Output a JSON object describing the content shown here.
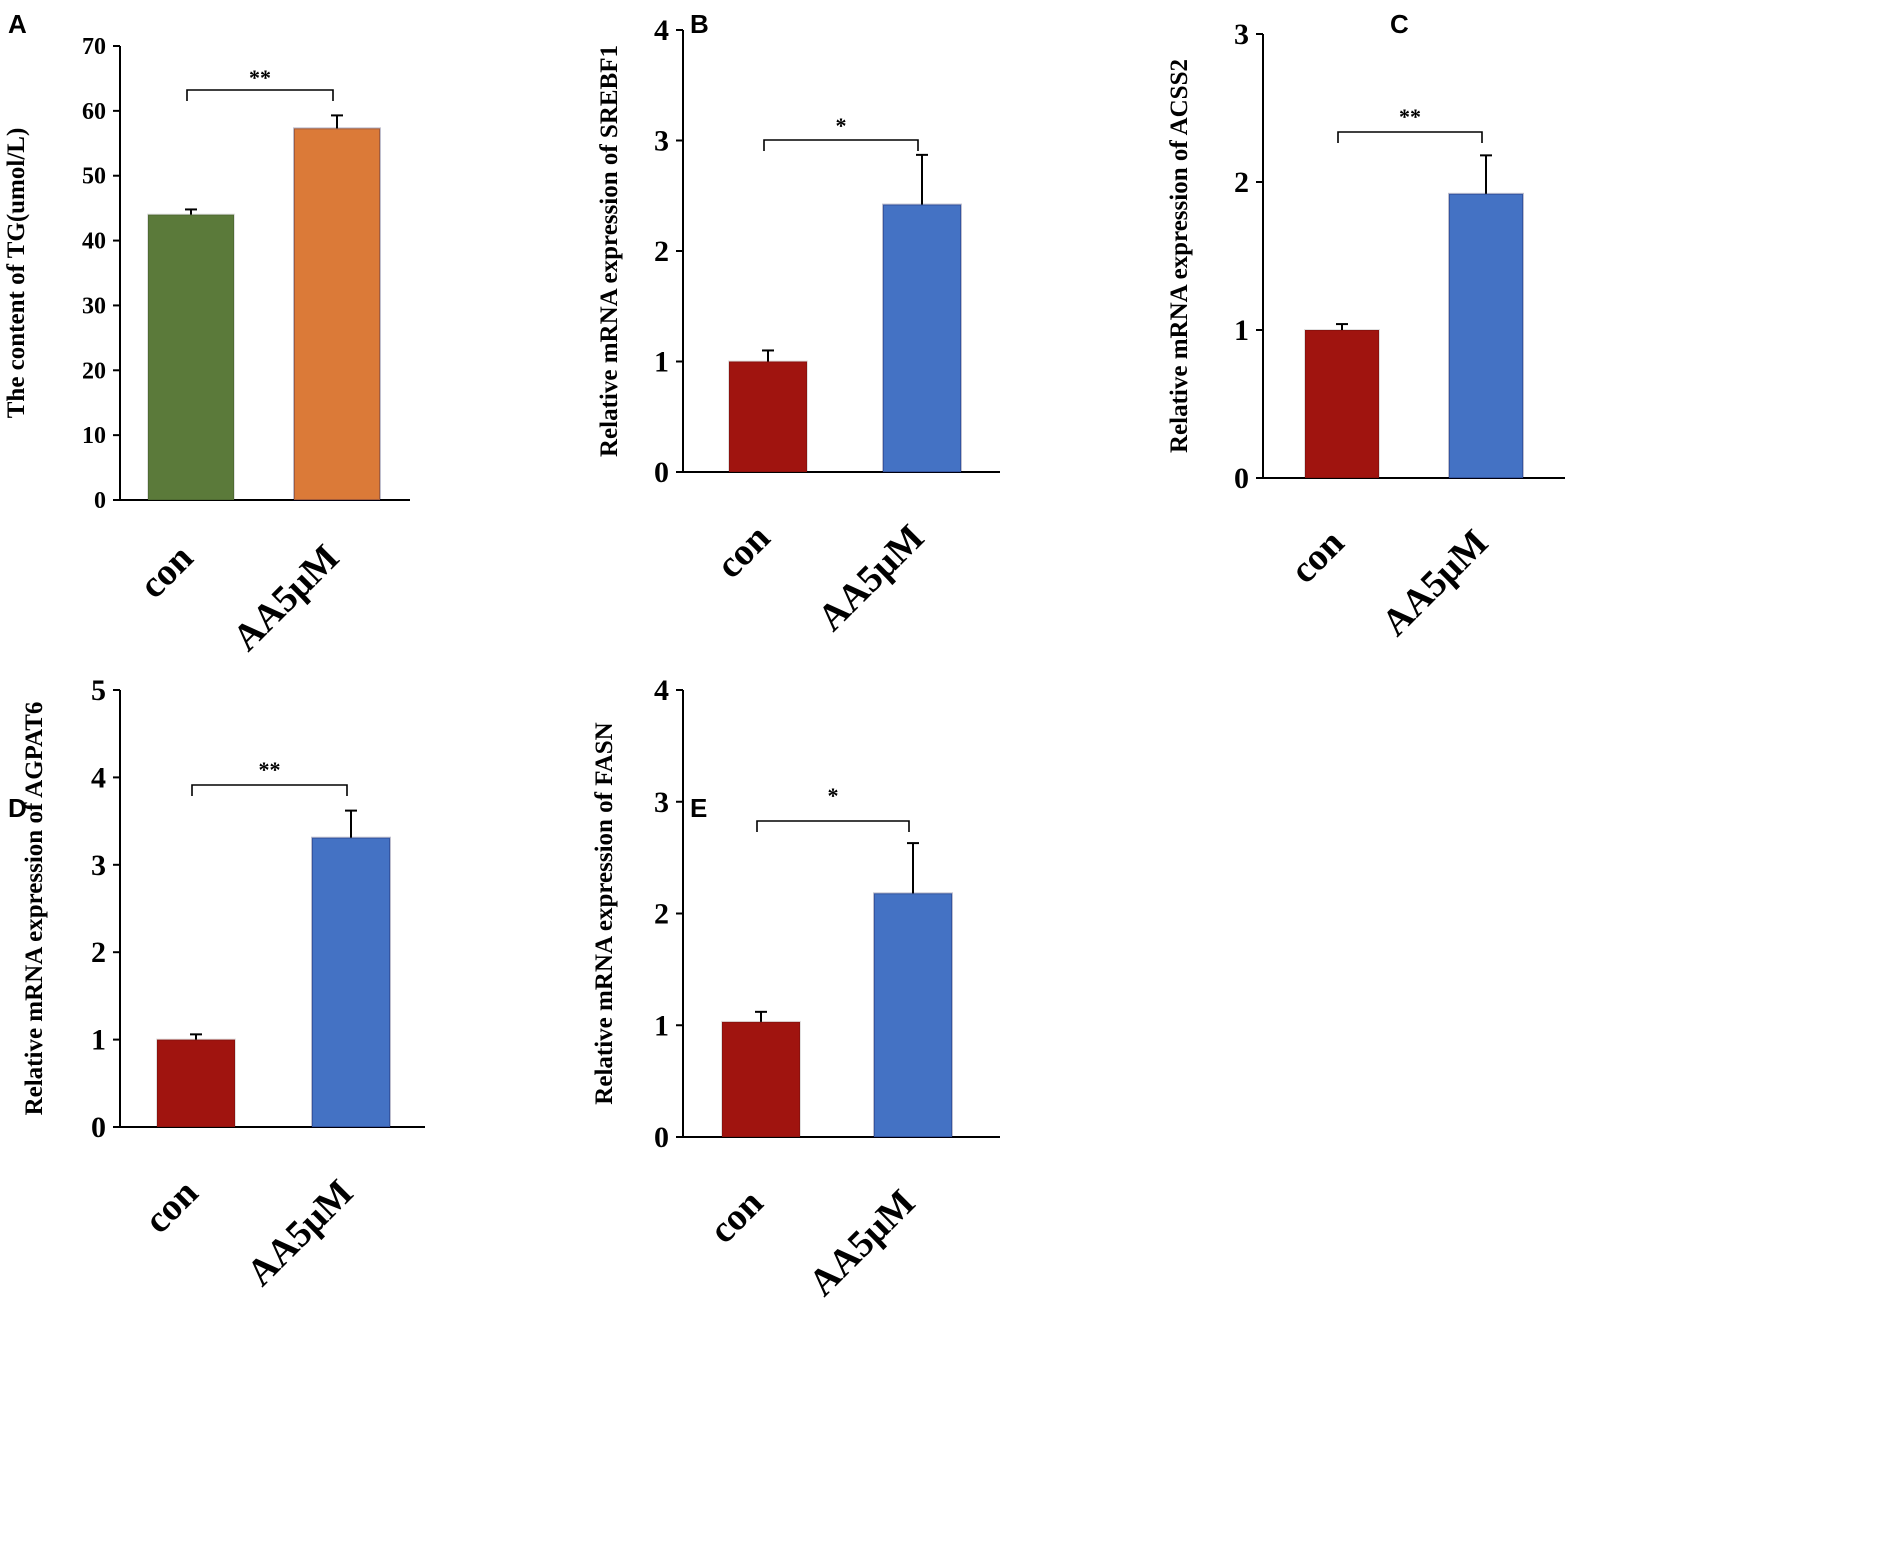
{
  "figure": {
    "panels": [
      {
        "id": "A",
        "letter": "A"
      },
      {
        "id": "B",
        "letter": "B"
      },
      {
        "id": "C",
        "letter": "C"
      },
      {
        "id": "D",
        "letter": "D"
      },
      {
        "id": "E",
        "letter": "E"
      }
    ]
  },
  "chart_data": [
    {
      "panel": "A",
      "type": "bar",
      "title": "",
      "xlabel": "",
      "ylabel": "The content of TG(umol/L)",
      "categories": [
        "con",
        "AA5μM"
      ],
      "values": [
        44,
        57.3
      ],
      "errors": [
        0.8,
        2.0
      ],
      "colors": [
        "#5b7a3a",
        "#db7a38"
      ],
      "ylim": [
        0,
        70
      ],
      "yticks": [
        0,
        10,
        20,
        30,
        40,
        50,
        60,
        70
      ],
      "significance": "**"
    },
    {
      "panel": "B",
      "type": "bar",
      "title": "",
      "xlabel": "",
      "ylabel": "Relative mRNA expression of SREBF1",
      "categories": [
        "con",
        "AA5μM"
      ],
      "values": [
        1.0,
        2.42
      ],
      "errors": [
        0.1,
        0.45
      ],
      "colors": [
        "#a0140f",
        "#4472c4"
      ],
      "ylim": [
        0,
        4
      ],
      "yticks": [
        0,
        1,
        2,
        3,
        4
      ],
      "significance": "*"
    },
    {
      "panel": "C",
      "type": "bar",
      "title": "",
      "xlabel": "",
      "ylabel": "Relative mRNA expression of ACSS2",
      "categories": [
        "con",
        "AA5μM"
      ],
      "values": [
        1.0,
        1.92
      ],
      "errors": [
        0.04,
        0.26
      ],
      "colors": [
        "#a0140f",
        "#4472c4"
      ],
      "ylim": [
        0,
        3
      ],
      "yticks": [
        0,
        1,
        2,
        3
      ],
      "significance": "**"
    },
    {
      "panel": "D",
      "type": "bar",
      "title": "",
      "xlabel": "",
      "ylabel": "Relative mRNA expression of AGPAT6",
      "categories": [
        "con",
        "AA5μM"
      ],
      "values": [
        1.0,
        3.31
      ],
      "errors": [
        0.06,
        0.31
      ],
      "colors": [
        "#a0140f",
        "#4472c4"
      ],
      "ylim": [
        0,
        5
      ],
      "yticks": [
        0,
        1,
        2,
        3,
        4,
        5
      ],
      "significance": "**"
    },
    {
      "panel": "E",
      "type": "bar",
      "title": "",
      "xlabel": "",
      "ylabel": "Relative mRNA expression of FASN",
      "categories": [
        "con",
        "AA5μM"
      ],
      "values": [
        1.03,
        2.18
      ],
      "errors": [
        0.09,
        0.45
      ],
      "colors": [
        "#a0140f",
        "#4472c4"
      ],
      "ylim": [
        0,
        4
      ],
      "yticks": [
        0,
        1,
        2,
        3,
        4
      ],
      "significance": "*"
    }
  ]
}
